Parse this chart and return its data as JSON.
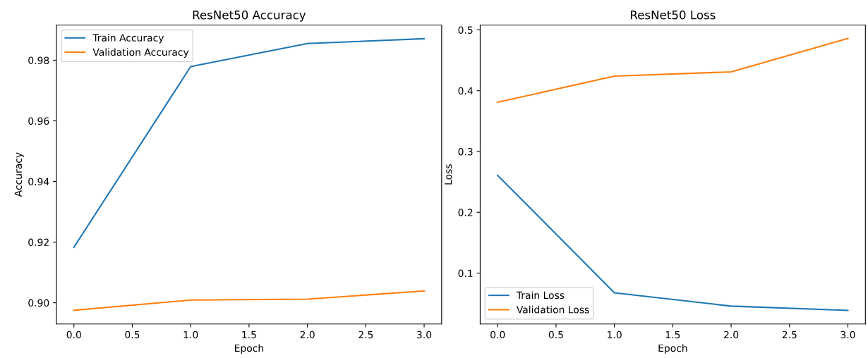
{
  "chart_data": [
    {
      "type": "line",
      "title": "ResNet50 Accuracy",
      "xlabel": "Epoch",
      "ylabel": "Accuracy",
      "x": [
        0,
        1,
        2,
        3
      ],
      "xlim": [
        -0.15,
        3.15
      ],
      "xticks": [
        {
          "value": 0,
          "label": "0.0"
        },
        {
          "value": 0.5,
          "label": "0.5"
        },
        {
          "value": 1,
          "label": "1.0"
        },
        {
          "value": 1.5,
          "label": "1.5"
        },
        {
          "value": 2,
          "label": "2.0"
        },
        {
          "value": 2.5,
          "label": "2.5"
        },
        {
          "value": 3,
          "label": "3.0"
        }
      ],
      "ylim": [
        0.893,
        0.9916
      ],
      "yticks": [
        {
          "value": 0.9,
          "label": "0.90"
        },
        {
          "value": 0.92,
          "label": "0.92"
        },
        {
          "value": 0.94,
          "label": "0.94"
        },
        {
          "value": 0.96,
          "label": "0.96"
        },
        {
          "value": 0.98,
          "label": "0.98"
        }
      ],
      "legend": "top left",
      "grid": false,
      "series": [
        {
          "name": "Train Accuracy",
          "color": "#1f77b4",
          "values": [
            0.9183,
            0.9779,
            0.9855,
            0.9871
          ]
        },
        {
          "name": "Validation Accuracy",
          "color": "#ff7f0e",
          "values": [
            0.8975,
            0.9009,
            0.9012,
            0.9039
          ]
        }
      ]
    },
    {
      "type": "line",
      "title": "ResNet50 Loss",
      "xlabel": "Epoch",
      "ylabel": "Loss",
      "x": [
        0,
        1,
        2,
        3
      ],
      "xlim": [
        -0.15,
        3.15
      ],
      "xticks": [
        {
          "value": 0,
          "label": "0.0"
        },
        {
          "value": 0.5,
          "label": "0.5"
        },
        {
          "value": 1,
          "label": "1.0"
        },
        {
          "value": 1.5,
          "label": "1.5"
        },
        {
          "value": 2,
          "label": "2.0"
        },
        {
          "value": 2.5,
          "label": "2.5"
        },
        {
          "value": 3,
          "label": "3.0"
        }
      ],
      "ylim": [
        0.0163,
        0.508
      ],
      "yticks": [
        0.1,
        0.2,
        0.3,
        0.4,
        0.5
      ],
      "legend": "bottom left",
      "grid": false,
      "series": [
        {
          "name": "Train Loss",
          "color": "#1f77b4",
          "values": [
            0.2607,
            0.0676,
            0.0457,
            0.0387
          ]
        },
        {
          "name": "Validation Loss",
          "color": "#ff7f0e",
          "values": [
            0.381,
            0.424,
            0.431,
            0.486
          ]
        }
      ]
    }
  ]
}
